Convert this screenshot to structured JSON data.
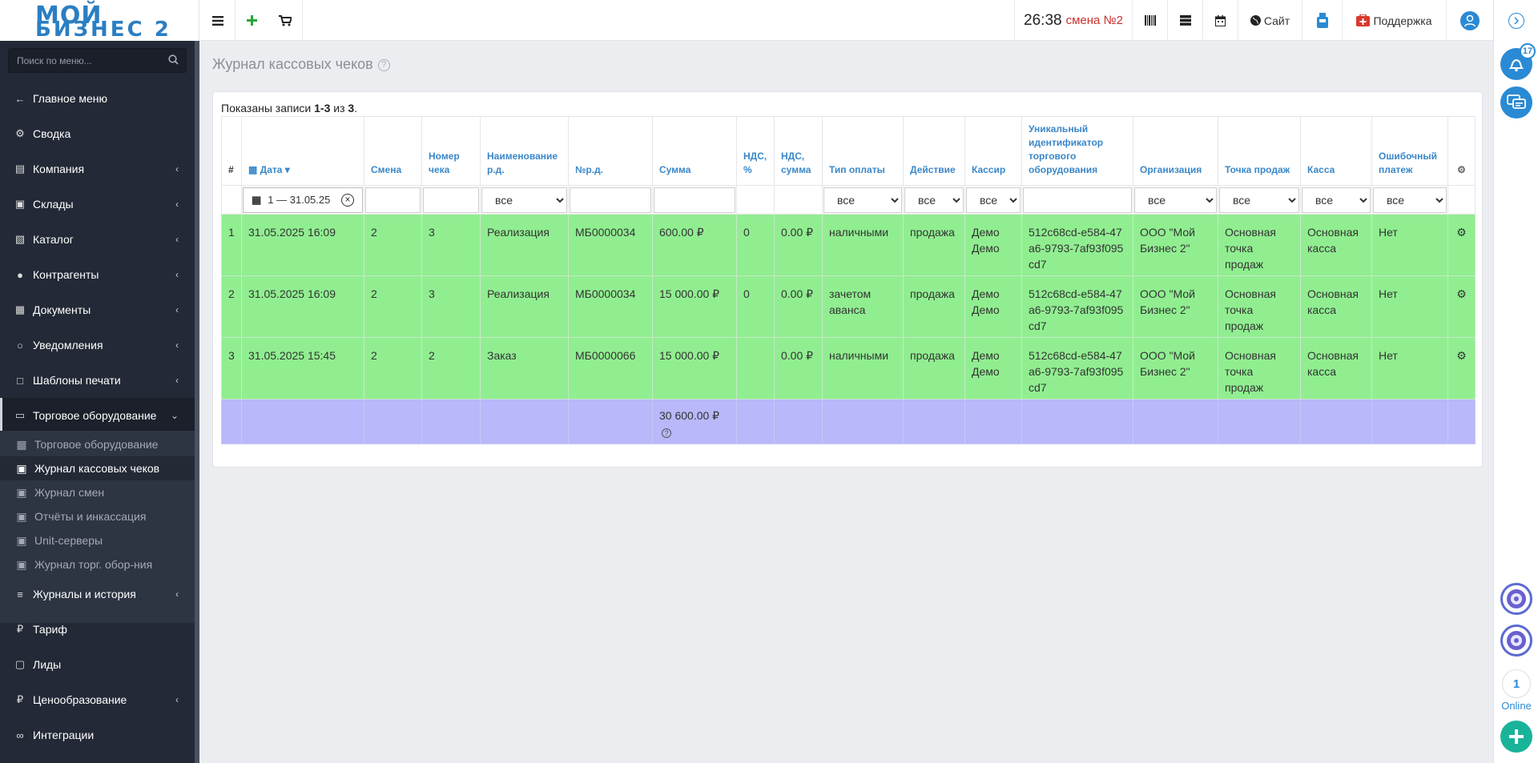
{
  "app": {
    "logo_line1": "МОЙ",
    "logo_line2": "БИЗНЕС 2"
  },
  "topbar": {
    "clock": "26:38",
    "shift": "смена №2",
    "site_label": "Сайт",
    "support_label": "Поддержка"
  },
  "rail": {
    "notifications_count": "17",
    "online_count": "1",
    "online_label": "Online"
  },
  "sidebar": {
    "search_placeholder": "Поиск по меню...",
    "items": [
      {
        "label": "Главное меню",
        "icon": "arrow-left-icon"
      },
      {
        "label": "Сводка",
        "icon": "gear-icon"
      },
      {
        "label": "Компания",
        "icon": "chart-icon"
      },
      {
        "label": "Склады",
        "icon": "truck-icon"
      },
      {
        "label": "Каталог",
        "icon": "folder-icon"
      },
      {
        "label": "Контрагенты",
        "icon": "users-icon"
      },
      {
        "label": "Документы",
        "icon": "document-icon"
      },
      {
        "label": "Уведомления",
        "icon": "comments-icon"
      },
      {
        "label": "Шаблоны печати",
        "icon": "print-template-icon"
      },
      {
        "label": "Торговое оборудование",
        "icon": "inbox-icon"
      },
      {
        "label": "Журналы и история",
        "icon": "list-icon"
      },
      {
        "label": "Тариф",
        "icon": "ruble-icon"
      },
      {
        "label": "Лиды",
        "icon": "lead-icon"
      },
      {
        "label": "Ценообразование",
        "icon": "ruble-icon"
      },
      {
        "label": "Интеграции",
        "icon": "paperclip-icon"
      }
    ],
    "sub_items": [
      {
        "label": "Торговое оборудование"
      },
      {
        "label": "Журнал кассовых чеков"
      },
      {
        "label": "Журнал смен"
      },
      {
        "label": "Отчёты и инкассация"
      },
      {
        "label": "Unit-серверы"
      },
      {
        "label": "Журнал торг. обор-ния"
      }
    ]
  },
  "page": {
    "title": "Журнал кассовых чеков",
    "summary_prefix": "Показаны записи ",
    "summary_range": "1-3",
    "summary_mid": " из ",
    "summary_total": "3",
    "summary_end": "."
  },
  "table": {
    "headers": {
      "num": "#",
      "date": "Дата",
      "shift": "Смена",
      "check": "Номер чека",
      "doc_name": "Наименование р.д.",
      "doc_no": "№р.д.",
      "sum": "Сумма",
      "vat_pct": "НДС, %",
      "vat_sum": "НДС, сумма",
      "pay": "Тип оплаты",
      "action": "Действие",
      "cashier": "Кассир",
      "uid": "Уникальный идентификатор торгового оборудования",
      "org": "Организация",
      "point": "Точка продаж",
      "kassa": "Касса",
      "err": "Ошибочный платеж"
    },
    "filters": {
      "date_range": "1 — 31.05.25",
      "doc_name": "все",
      "pay": "все",
      "action": "все",
      "cashier": "все",
      "org": "все",
      "point": "все",
      "kassa": "все",
      "err": "все"
    },
    "rows": [
      {
        "num": "1",
        "date": "31.05.2025 16:09",
        "shift": "2",
        "check": "3",
        "doc_name": "Реализация",
        "doc_no": "МБ0000034",
        "sum": "600.00 ₽",
        "vat_pct": "0",
        "vat_sum": "0.00 ₽",
        "pay": "наличными",
        "action": "продажа",
        "cashier": "Демо Демо",
        "uid": "512c68cd-e584-47a6-9793-7af93f095cd7",
        "org": "ООО \"Мой Бизнес 2\"",
        "point": "Основная точка продаж",
        "kassa": "Основная касса",
        "err": "Нет"
      },
      {
        "num": "2",
        "date": "31.05.2025 16:09",
        "shift": "2",
        "check": "3",
        "doc_name": "Реализация",
        "doc_no": "МБ0000034",
        "sum": "15 000.00 ₽",
        "vat_pct": "0",
        "vat_sum": "0.00 ₽",
        "pay": "зачетом аванса",
        "action": "продажа",
        "cashier": "Демо Демо",
        "uid": "512c68cd-e584-47a6-9793-7af93f095cd7",
        "org": "ООО \"Мой Бизнес 2\"",
        "point": "Основная точка продаж",
        "kassa": "Основная касса",
        "err": "Нет"
      },
      {
        "num": "3",
        "date": "31.05.2025 15:45",
        "shift": "2",
        "check": "2",
        "doc_name": "Заказ",
        "doc_no": "МБ0000066",
        "sum": "15 000.00 ₽",
        "vat_pct": "",
        "vat_sum": "0.00 ₽",
        "pay": "наличными",
        "action": "продажа",
        "cashier": "Демо Демо",
        "uid": "512c68cd-e584-47a6-9793-7af93f095cd7",
        "org": "ООО \"Мой Бизнес 2\"",
        "point": "Основная точка продаж",
        "kassa": "Основная касса",
        "err": "Нет"
      }
    ],
    "total_sum": "30 600.00 ₽"
  },
  "colors": {
    "row_bg": "#90ee90",
    "total_bg": "#b8b8fa",
    "sidebar_bg": "#232936",
    "accent": "#2a8ad4",
    "shift_red": "#c9302c"
  }
}
